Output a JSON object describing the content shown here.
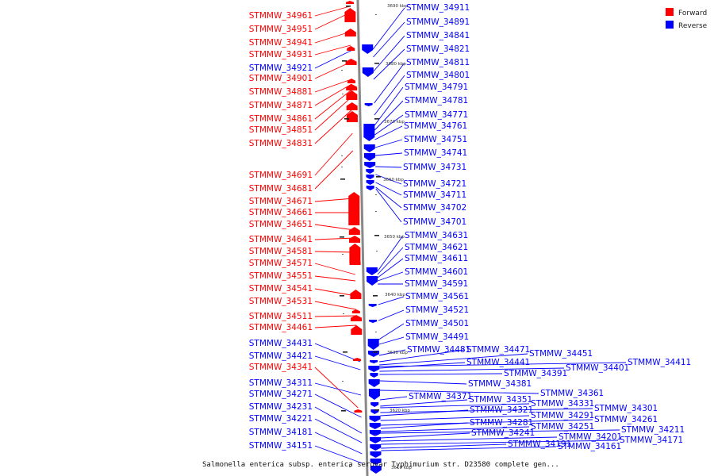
{
  "title": "Salmonella enterica subsp. enterica serovar Typhimurium str. D23580 complete gen...",
  "colors": {
    "forward": "#ff0000",
    "reverse": "#0000ff",
    "backbone": "#888888"
  },
  "legend": {
    "forward_label": "Forward",
    "reverse_label": "Reverse"
  },
  "ticks": [
    "3690 kbp",
    "3680 kbp",
    "3670 kbp",
    "3660 kbp",
    "3650 kbp",
    "3640 kbp",
    "3630 kbp",
    "3620 kbp",
    "3610 kbp"
  ],
  "forward_genes": [
    "STMMW_34961",
    "STMMW_34951",
    "STMMW_34941",
    "STMMW_34931",
    "STMMW_34901",
    "STMMW_34881",
    "STMMW_34871",
    "STMMW_34861",
    "STMMW_34851",
    "STMMW_34831",
    "STMMW_34691",
    "STMMW_34681",
    "STMMW_34671",
    "STMMW_34661",
    "STMMW_34651",
    "STMMW_34641",
    "STMMW_34581",
    "STMMW_34571",
    "STMMW_34551",
    "STMMW_34541",
    "STMMW_34531",
    "STMMW_34511",
    "STMMW_34461",
    "STMMW_34341"
  ],
  "reverse_genes_left": [
    "STMMW_34921",
    "STMMW_34431",
    "STMMW_34421",
    "STMMW_34311",
    "STMMW_34271",
    "STMMW_34231",
    "STMMW_34221",
    "STMMW_34181",
    "STMMW_34151"
  ],
  "reverse_genes_right": [
    "STMMW_34911",
    "STMMW_34891",
    "STMMW_34841",
    "STMMW_34821",
    "STMMW_34811",
    "STMMW_34801",
    "STMMW_34791",
    "STMMW_34781",
    "STMMW_34771",
    "STMMW_34761",
    "STMMW_34751",
    "STMMW_34741",
    "STMMW_34731",
    "STMMW_34721",
    "STMMW_34711",
    "STMMW_34702",
    "STMMW_34701",
    "STMMW_34631",
    "STMMW_34621",
    "STMMW_34611",
    "STMMW_34601",
    "STMMW_34591",
    "STMMW_34561",
    "STMMW_34521",
    "STMMW_34501",
    "STMMW_34491",
    "STMMW_34481"
  ],
  "reverse_genes_cluster": [
    "STMMW_34471",
    "STMMW_34451",
    "STMMW_34441",
    "STMMW_34411",
    "STMMW_34401",
    "STMMW_34391",
    "STMMW_34381",
    "STMMW_34371",
    "STMMW_34361",
    "STMMW_34351",
    "STMMW_34331",
    "STMMW_34321",
    "STMMW_34301",
    "STMMW_34291",
    "STMMW_34281",
    "STMMW_34261",
    "STMMW_34251",
    "STMMW_34241",
    "STMMW_34211",
    "STMMW_34201",
    "STMMW_34191",
    "STMMW_34171",
    "STMMW_34161"
  ]
}
